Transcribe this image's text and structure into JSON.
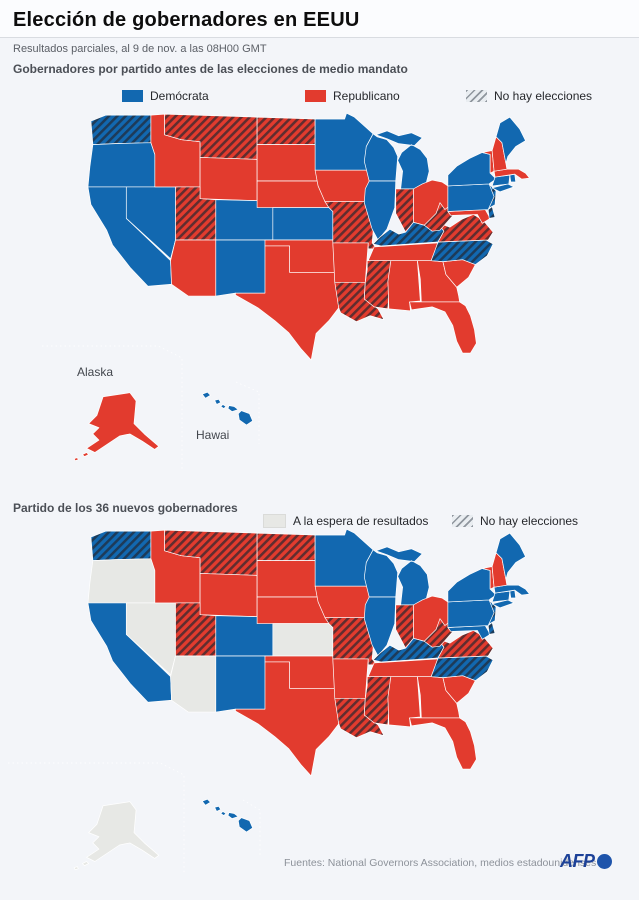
{
  "header": {
    "title": "Elección de gobernadores en EEUU",
    "subtitle": "Resultados parciales, al 9 de nov. a las 08H00 GMT"
  },
  "section1": {
    "heading": "Gobernadores por partido antes de las elecciones de medio mandato",
    "legend": [
      {
        "label": "Demócrata",
        "swatch": "democrat"
      },
      {
        "label": "Republicano",
        "swatch": "republican"
      },
      {
        "label": "No hay elecciones",
        "swatch": "no-election"
      }
    ]
  },
  "section2": {
    "heading": "Partido de los 36 nuevos gobernadores",
    "legend": [
      {
        "label": "A la espera de resultados",
        "swatch": "pending"
      },
      {
        "label": "No hay elecciones",
        "swatch": "no-election"
      }
    ]
  },
  "insets": {
    "alaska_label": "Alaska",
    "hawaii_label": "Hawai"
  },
  "footer": {
    "source": "Fuentes: National Governors Association, medios estadounidenses",
    "logo_text": "AFP"
  },
  "colors": {
    "democrat": "#1268b0",
    "republican": "#e23b2e",
    "pending": "#e7e8e5",
    "hatch_line": "#22262f",
    "background": "#f3f5f9"
  },
  "map1": {
    "name": "governors-before-midterms",
    "states": {
      "WA": {
        "party": "D",
        "election": false
      },
      "OR": {
        "party": "D",
        "election": true
      },
      "CA": {
        "party": "D",
        "election": true
      },
      "NV": {
        "party": "D",
        "election": true
      },
      "ID": {
        "party": "R",
        "election": true
      },
      "MT": {
        "party": "R",
        "election": false
      },
      "WY": {
        "party": "R",
        "election": true
      },
      "UT": {
        "party": "R",
        "election": false
      },
      "AZ": {
        "party": "R",
        "election": true
      },
      "NM": {
        "party": "D",
        "election": true
      },
      "CO": {
        "party": "D",
        "election": true
      },
      "ND": {
        "party": "R",
        "election": false
      },
      "SD": {
        "party": "R",
        "election": true
      },
      "NE": {
        "party": "R",
        "election": true
      },
      "KS": {
        "party": "D",
        "election": true
      },
      "OK": {
        "party": "R",
        "election": true
      },
      "TX": {
        "party": "R",
        "election": true
      },
      "MN": {
        "party": "D",
        "election": true
      },
      "IA": {
        "party": "R",
        "election": true
      },
      "MO": {
        "party": "R",
        "election": false
      },
      "AR": {
        "party": "R",
        "election": true
      },
      "LA": {
        "party": "R",
        "election": false
      },
      "WI": {
        "party": "D",
        "election": true
      },
      "IL": {
        "party": "D",
        "election": true
      },
      "MI": {
        "party": "D",
        "election": true
      },
      "IN": {
        "party": "R",
        "election": false
      },
      "OH": {
        "party": "R",
        "election": true
      },
      "KY": {
        "party": "D",
        "election": false
      },
      "TN": {
        "party": "R",
        "election": true
      },
      "MS": {
        "party": "R",
        "election": false
      },
      "AL": {
        "party": "R",
        "election": true
      },
      "GA": {
        "party": "R",
        "election": true
      },
      "FL": {
        "party": "R",
        "election": true
      },
      "SC": {
        "party": "R",
        "election": true
      },
      "NC": {
        "party": "D",
        "election": false
      },
      "VA": {
        "party": "R",
        "election": false
      },
      "WV": {
        "party": "R",
        "election": false
      },
      "PA": {
        "party": "D",
        "election": true
      },
      "NY": {
        "party": "D",
        "election": true
      },
      "ME": {
        "party": "D",
        "election": true
      },
      "NH": {
        "party": "R",
        "election": true
      },
      "VT": {
        "party": "R",
        "election": true
      },
      "MA": {
        "party": "R",
        "election": true
      },
      "RI": {
        "party": "D",
        "election": true
      },
      "CT": {
        "party": "D",
        "election": true
      },
      "NJ": {
        "party": "D",
        "election": false
      },
      "DE": {
        "party": "D",
        "election": false
      },
      "MD": {
        "party": "R",
        "election": true
      },
      "AK": {
        "party": "R",
        "election": true
      },
      "HI": {
        "party": "D",
        "election": true
      }
    }
  },
  "map2": {
    "name": "new-governors-results",
    "states": {
      "WA": {
        "party": "D",
        "election": false
      },
      "OR": {
        "party": "pending",
        "election": true
      },
      "CA": {
        "party": "D",
        "election": true
      },
      "NV": {
        "party": "pending",
        "election": true
      },
      "ID": {
        "party": "R",
        "election": true
      },
      "MT": {
        "party": "R",
        "election": false
      },
      "WY": {
        "party": "R",
        "election": true
      },
      "UT": {
        "party": "R",
        "election": false
      },
      "AZ": {
        "party": "pending",
        "election": true
      },
      "NM": {
        "party": "D",
        "election": true
      },
      "CO": {
        "party": "D",
        "election": true
      },
      "ND": {
        "party": "R",
        "election": false
      },
      "SD": {
        "party": "R",
        "election": true
      },
      "NE": {
        "party": "R",
        "election": true
      },
      "KS": {
        "party": "pending",
        "election": true
      },
      "OK": {
        "party": "R",
        "election": true
      },
      "TX": {
        "party": "R",
        "election": true
      },
      "MN": {
        "party": "D",
        "election": true
      },
      "IA": {
        "party": "R",
        "election": true
      },
      "MO": {
        "party": "R",
        "election": false
      },
      "AR": {
        "party": "R",
        "election": true
      },
      "LA": {
        "party": "R",
        "election": false
      },
      "WI": {
        "party": "D",
        "election": true
      },
      "IL": {
        "party": "D",
        "election": true
      },
      "MI": {
        "party": "D",
        "election": true
      },
      "IN": {
        "party": "R",
        "election": false
      },
      "OH": {
        "party": "R",
        "election": true
      },
      "KY": {
        "party": "D",
        "election": false
      },
      "TN": {
        "party": "R",
        "election": true
      },
      "MS": {
        "party": "R",
        "election": false
      },
      "AL": {
        "party": "R",
        "election": true
      },
      "GA": {
        "party": "R",
        "election": true
      },
      "FL": {
        "party": "R",
        "election": true
      },
      "SC": {
        "party": "R",
        "election": true
      },
      "NC": {
        "party": "D",
        "election": false
      },
      "VA": {
        "party": "R",
        "election": false
      },
      "WV": {
        "party": "R",
        "election": false
      },
      "PA": {
        "party": "D",
        "election": true
      },
      "NY": {
        "party": "D",
        "election": true
      },
      "ME": {
        "party": "D",
        "election": true
      },
      "NH": {
        "party": "R",
        "election": true
      },
      "VT": {
        "party": "R",
        "election": true
      },
      "MA": {
        "party": "D",
        "election": true
      },
      "RI": {
        "party": "D",
        "election": true
      },
      "CT": {
        "party": "D",
        "election": true
      },
      "NJ": {
        "party": "D",
        "election": false
      },
      "DE": {
        "party": "D",
        "election": false
      },
      "MD": {
        "party": "D",
        "election": true
      },
      "AK": {
        "party": "pending",
        "election": true
      },
      "HI": {
        "party": "D",
        "election": true
      }
    }
  }
}
